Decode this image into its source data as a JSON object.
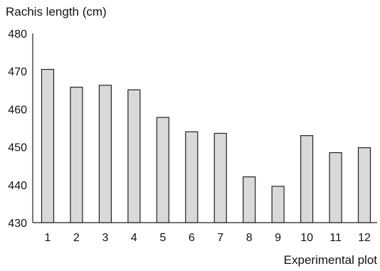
{
  "chart_data": {
    "type": "bar",
    "ylabel": "Rachis length (cm)",
    "xlabel": "Experimental plot",
    "categories": [
      "1",
      "2",
      "3",
      "4",
      "5",
      "6",
      "7",
      "8",
      "9",
      "10",
      "11",
      "12"
    ],
    "values": [
      470.5,
      465.8,
      466.3,
      465.1,
      457.8,
      454.0,
      453.6,
      442.1,
      439.6,
      453.0,
      448.5,
      449.8
    ],
    "ylim": [
      430,
      480
    ],
    "yticks": [
      "430",
      "440",
      "450",
      "460",
      "470",
      "480"
    ],
    "grid": false,
    "legend": "none",
    "bar_fill": "#d9d9d9",
    "bar_stroke": "#222222"
  }
}
